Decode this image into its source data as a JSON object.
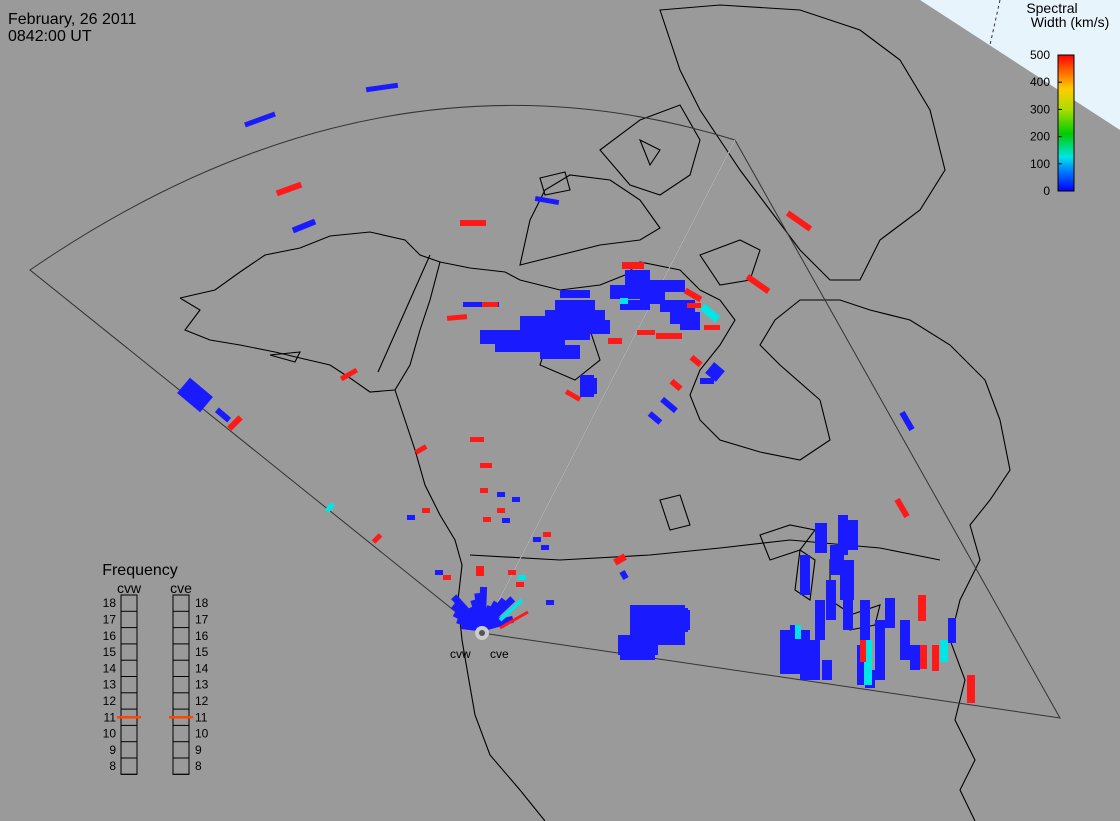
{
  "header": {
    "date": "February, 26 2011",
    "time": "0842:00 UT"
  },
  "colorbar": {
    "title_line1": "Spectral",
    "title_line2": "Width (km/s)",
    "ticks": [
      "500",
      "400",
      "300",
      "200",
      "100",
      "0"
    ],
    "max_value": 500
  },
  "frequency_panel": {
    "title": "Frequency",
    "radars": [
      {
        "name": "cvw",
        "frequency_mhz": 11.0
      },
      {
        "name": "cve",
        "frequency_mhz": 11.0
      }
    ],
    "scale": [
      "18",
      "17",
      "16",
      "15",
      "14",
      "13",
      "12",
      "11",
      "10",
      "9",
      "8"
    ],
    "marker_color": "#ff4500"
  },
  "radars": {
    "west_label": "cvw",
    "east_label": "cve"
  },
  "colors": {
    "background": "#9a9a9a",
    "coastline": "#000000",
    "fov": "#333333",
    "low_width": "#1a1aff",
    "mid_width": "#00e5e5",
    "high_width": "#ff1a1a"
  }
}
